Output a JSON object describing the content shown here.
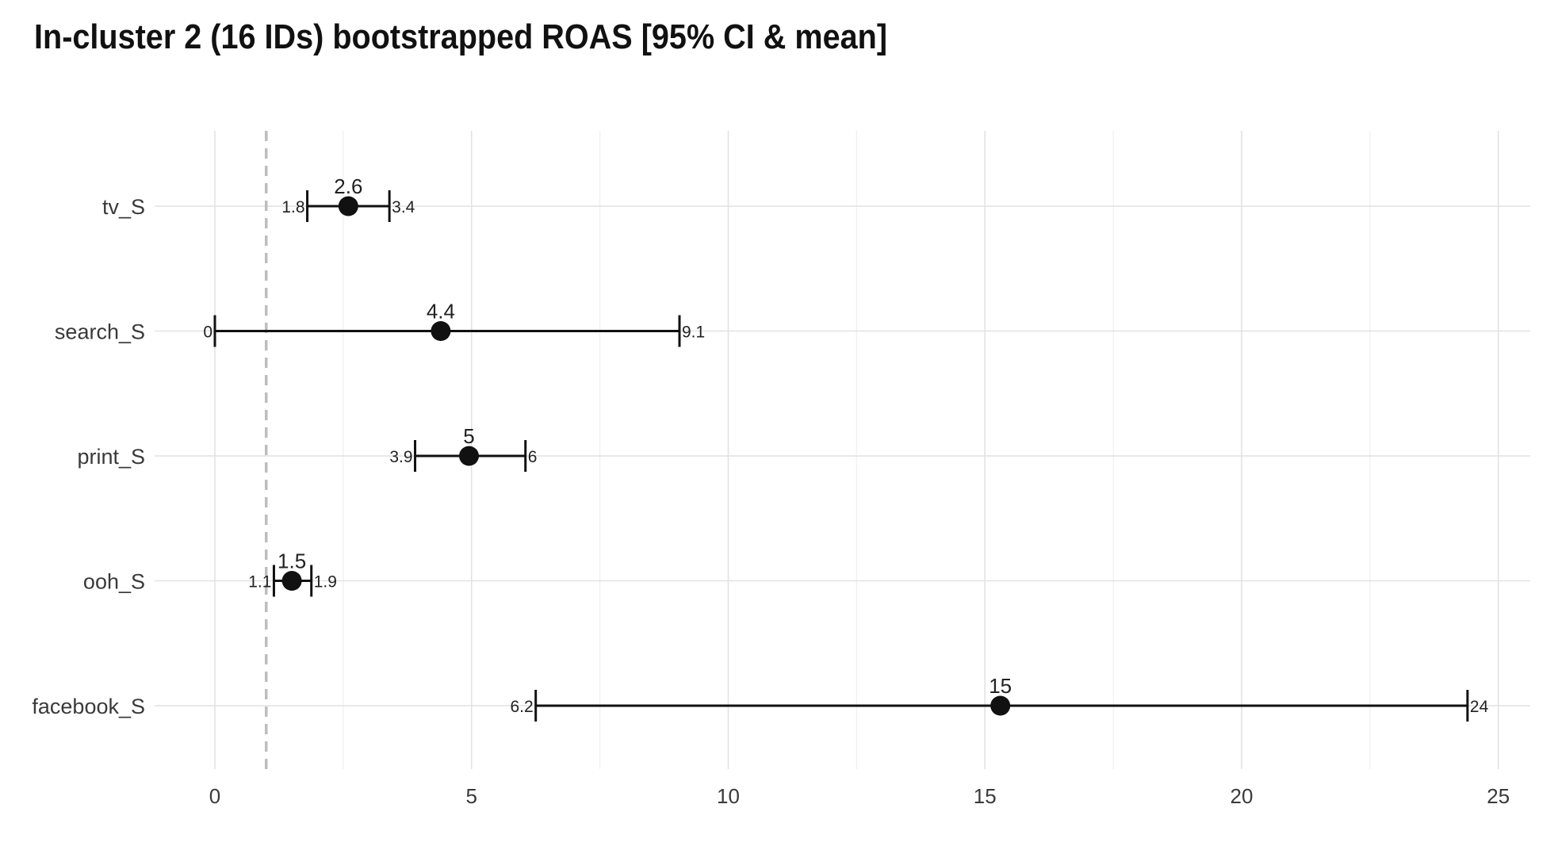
{
  "chart_data": {
    "type": "errorbar",
    "title": "In-cluster 2 (16 IDs) bootstrapped ROAS [95% CI & mean]",
    "xlabel": "",
    "ylabel": "",
    "xlim": [
      -1.2,
      25.6
    ],
    "x_ticks": [
      0,
      5,
      10,
      15,
      20,
      25
    ],
    "reference_line": 1,
    "grid": true,
    "categories": [
      "tv_S",
      "search_S",
      "print_S",
      "ooh_S",
      "facebook_S"
    ],
    "points": [
      {
        "category": "tv_S",
        "mean": 2.6,
        "lower": 1.8,
        "upper": 3.4,
        "mean_label": "2.6",
        "lower_label": "1.8",
        "upper_label": "3.4"
      },
      {
        "category": "search_S",
        "mean": 4.4,
        "lower": 0,
        "upper": 9.05,
        "mean_label": "4.4",
        "lower_label": "0",
        "upper_label": "9.1"
      },
      {
        "category": "print_S",
        "mean": 4.95,
        "lower": 3.9,
        "upper": 6.05,
        "mean_label": "5",
        "lower_label": "3.9",
        "upper_label": "6"
      },
      {
        "category": "ooh_S",
        "mean": 1.5,
        "lower": 1.15,
        "upper": 1.88,
        "mean_label": "1.5",
        "lower_label": "1.1",
        "upper_label": "1.9"
      },
      {
        "category": "facebook_S",
        "mean": 15.3,
        "lower": 6.25,
        "upper": 24.4,
        "mean_label": "15",
        "lower_label": "6.2",
        "upper_label": "24"
      }
    ]
  }
}
